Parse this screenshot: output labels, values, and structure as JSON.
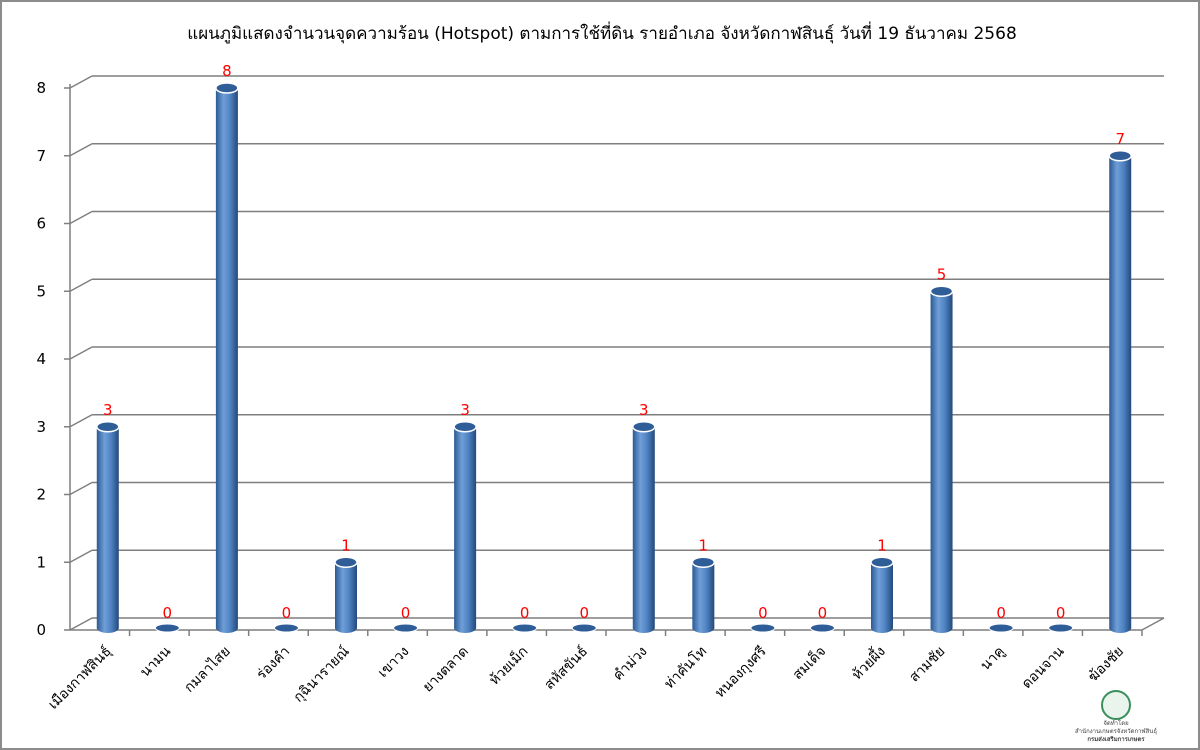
{
  "chart_data": {
    "type": "bar",
    "title": "แผนภูมิแสดงจำนวนจุดความร้อน (Hotspot) ตามการใช้ที่ดิน รายอำเภอ จังหวัดกาฬสินธุ์ วันที่ 19 ธันวาคม 2568",
    "categories": [
      "เมืองกาฬสินธุ์",
      "นามน",
      "กมลาไสย",
      "ร่องคำ",
      "กุฉินารายณ์",
      "เขาวง",
      "ยางตลาด",
      "ห้วยเม็ก",
      "สหัสขันธ์",
      "คำม่วง",
      "ท่าคันโท",
      "หนองกุงศรี",
      "สมเด็จ",
      "ห้วยผึ้ง",
      "สามชัย",
      "นาคู",
      "ดอนจาน",
      "ฆ้องชัย"
    ],
    "values": [
      3,
      0,
      8,
      0,
      1,
      0,
      3,
      0,
      0,
      3,
      1,
      0,
      0,
      1,
      5,
      0,
      0,
      7
    ],
    "ylim": [
      0,
      8
    ],
    "yticks": [
      0,
      1,
      2,
      3,
      4,
      5,
      6,
      7,
      8
    ],
    "xlabel": "",
    "ylabel": "",
    "grid": true,
    "legend": "none",
    "bar_color": "#4a7fc1",
    "label_color": "#ff0000"
  },
  "logo": {
    "line1": "จัดทำโดย",
    "line2": "สำนักงานเกษตรจังหวัดกาฬสินธุ์",
    "line3": "กรมส่งเสริมการเกษตร"
  }
}
